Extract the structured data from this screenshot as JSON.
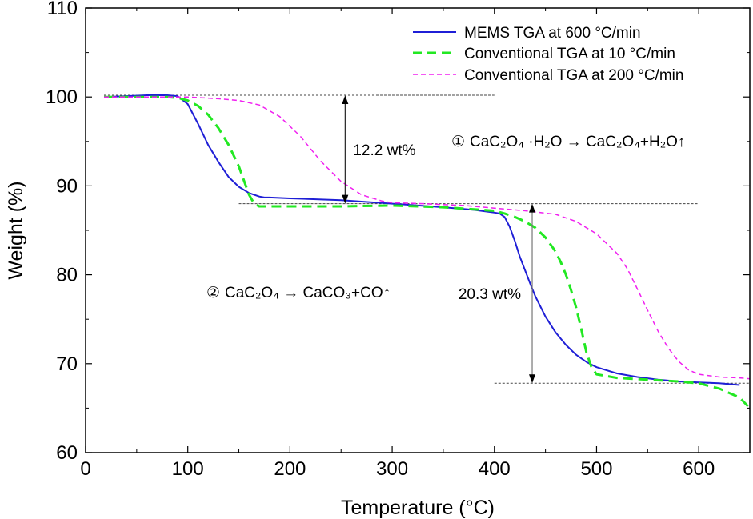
{
  "chart_data": {
    "type": "line",
    "title": "",
    "xlabel": "Temperature (°C)",
    "ylabel": "Weight (%)",
    "xlim": [
      0,
      650
    ],
    "ylim": [
      60,
      110
    ],
    "xticks": [
      0,
      100,
      200,
      300,
      400,
      500,
      600
    ],
    "yticks": [
      60,
      70,
      80,
      90,
      100,
      110
    ],
    "grid": false,
    "legend_position": "top-right",
    "colors": {
      "mems": "#1f1fd6",
      "conv10": "#22e822",
      "conv200": "#f020f0",
      "reference": "#444444"
    },
    "series": [
      {
        "name": "MEMS TGA at 600 °C/min",
        "style": "solid",
        "color": "#1f1fd6",
        "x": [
          18,
          40,
          60,
          80,
          90,
          100,
          110,
          120,
          130,
          140,
          150,
          160,
          170,
          175,
          180,
          200,
          250,
          300,
          350,
          380,
          400,
          405,
          410,
          415,
          420,
          425,
          430,
          435,
          440,
          450,
          460,
          470,
          480,
          490,
          500,
          520,
          540,
          560,
          580,
          600,
          620,
          640
        ],
        "y": [
          100.0,
          100.1,
          100.2,
          100.2,
          100.1,
          99.2,
          97.0,
          94.6,
          92.7,
          91.0,
          89.9,
          89.2,
          88.8,
          88.7,
          88.7,
          88.6,
          88.4,
          88.0,
          87.6,
          87.3,
          87.0,
          86.9,
          86.5,
          85.4,
          83.8,
          82.0,
          80.5,
          79.0,
          77.6,
          75.3,
          73.5,
          72.1,
          71.0,
          70.2,
          69.6,
          68.9,
          68.5,
          68.2,
          68.0,
          67.9,
          67.8,
          67.6
        ]
      },
      {
        "name": "Conventional TGA at 10 °C/min",
        "style": "dashed",
        "color": "#22e822",
        "x": [
          18,
          40,
          60,
          80,
          90,
          100,
          110,
          120,
          130,
          140,
          150,
          155,
          160,
          165,
          170,
          180,
          200,
          250,
          300,
          350,
          400,
          410,
          420,
          430,
          440,
          450,
          460,
          465,
          470,
          475,
          480,
          485,
          490,
          495,
          500,
          520,
          550,
          580,
          600,
          620,
          640,
          650
        ],
        "y": [
          100.0,
          100.0,
          100.0,
          100.0,
          99.9,
          99.6,
          99.0,
          98.0,
          96.5,
          94.6,
          92.2,
          90.6,
          89.0,
          88.0,
          87.7,
          87.7,
          87.7,
          87.7,
          87.8,
          87.6,
          87.2,
          86.9,
          86.5,
          86.0,
          85.3,
          84.2,
          82.6,
          81.4,
          80.0,
          78.3,
          76.3,
          73.9,
          71.3,
          69.6,
          68.8,
          68.4,
          68.2,
          68.0,
          67.8,
          67.2,
          66.2,
          65.0
        ]
      },
      {
        "name": "Conventional TGA at 200 °C/min",
        "style": "dashed",
        "color": "#f020f0",
        "x": [
          18,
          50,
          80,
          100,
          130,
          150,
          170,
          190,
          210,
          230,
          250,
          270,
          290,
          300,
          330,
          370,
          400,
          430,
          460,
          480,
          500,
          520,
          530,
          540,
          550,
          560,
          570,
          580,
          590,
          600,
          620,
          640,
          650
        ],
        "y": [
          100.0,
          100.0,
          100.0,
          100.0,
          99.8,
          99.6,
          99.1,
          97.8,
          95.6,
          92.8,
          90.5,
          89.0,
          88.3,
          88.1,
          88.0,
          87.8,
          87.5,
          87.2,
          86.8,
          86.0,
          84.6,
          82.4,
          80.7,
          78.4,
          76.0,
          73.7,
          71.8,
          70.3,
          69.3,
          68.8,
          68.5,
          68.4,
          68.3
        ]
      }
    ],
    "reference_lines": [
      {
        "x1": 18,
        "x2": 400,
        "y": 100.2
      },
      {
        "x1": 150,
        "x2": 600,
        "y": 88.0
      },
      {
        "x1": 400,
        "x2": 650,
        "y": 67.8
      }
    ],
    "arrows": [
      {
        "x": 254,
        "y_top": 100.2,
        "y_bottom": 88.0,
        "label": "12.2 wt%"
      },
      {
        "x": 437,
        "y_top": 88.0,
        "y_bottom": 67.8,
        "label": "20.3 wt%"
      }
    ],
    "annotations": {
      "reaction1": {
        "marker": "①",
        "text": "CaC₂O₄ ·H₂O → CaC₂O₄+H₂O↑"
      },
      "reaction2": {
        "marker": "②",
        "text": "CaC₂O₄ → CaCO₃+CO↑"
      }
    }
  }
}
